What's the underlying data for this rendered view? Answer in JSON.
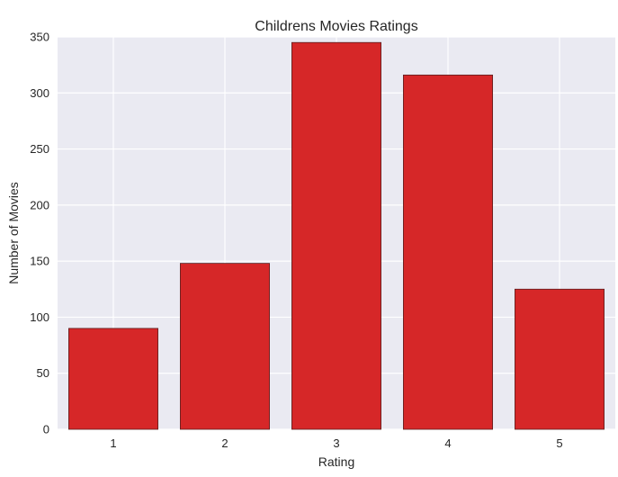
{
  "chart_data": {
    "type": "bar",
    "title": "Childrens Movies Ratings",
    "xlabel": "Rating",
    "ylabel": "Number of Movies",
    "categories": [
      "1",
      "2",
      "3",
      "4",
      "5"
    ],
    "values": [
      90,
      148,
      345,
      316,
      125
    ],
    "ylim": [
      0,
      350
    ],
    "yticks": [
      0,
      50,
      100,
      150,
      200,
      250,
      300,
      350
    ],
    "grid": true,
    "colors": {
      "bar": "#d62728",
      "plot_background": "#eaeaf2",
      "grid": "#ffffff",
      "text": "#262626"
    }
  }
}
